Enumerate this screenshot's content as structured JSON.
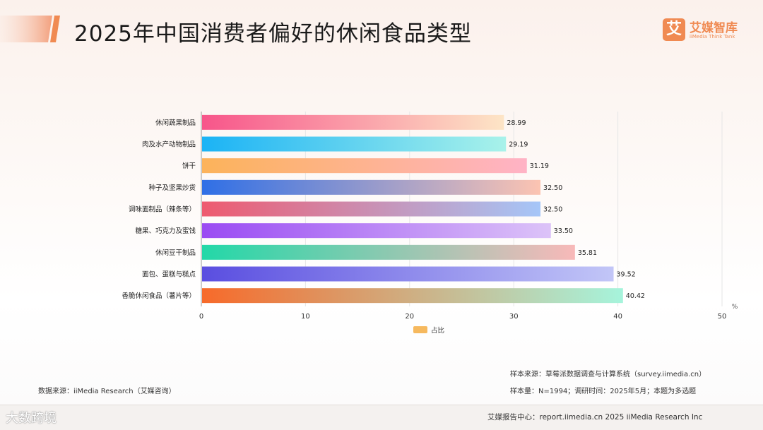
{
  "header": {
    "title": "2025年中国消费者偏好的休闲食品类型",
    "logo_mark": "艾",
    "logo_cn": "艾媒智库",
    "logo_en": "iiMedia Think Tank"
  },
  "chart_data": {
    "type": "bar",
    "orientation": "horizontal",
    "categories": [
      "休闲蔬果制品",
      "肉及水产动物制品",
      "饼干",
      "种子及坚果炒货",
      "调味面制品（辣条等）",
      "糖果、巧克力及蜜饯",
      "休闲豆干制品",
      "面包、蛋糕与糕点",
      "香脆休闲食品（薯片等）"
    ],
    "series": [
      {
        "name": "占比",
        "values": [
          28.99,
          29.19,
          31.19,
          32.5,
          32.5,
          33.5,
          35.81,
          39.52,
          40.42
        ]
      }
    ],
    "value_labels": [
      "28.99",
      "29.19",
      "31.19",
      "32.50",
      "32.50",
      "33.50",
      "35.81",
      "39.52",
      "40.42"
    ],
    "xlim": [
      0,
      50
    ],
    "xticks": [
      0,
      10,
      20,
      30,
      40,
      50
    ],
    "unit": "%",
    "grid": true,
    "legend_position": "bottom",
    "legend_color": "#f6b95e",
    "bar_gradients": [
      [
        "#f7558a",
        "#fde5c6"
      ],
      [
        "#1bb3f5",
        "#a9f2ea"
      ],
      [
        "#fcb35a",
        "#ffb3c6"
      ],
      [
        "#2f6fe6",
        "#fcc4b2"
      ],
      [
        "#ee5a6f",
        "#a5c6f8"
      ],
      [
        "#9a4bf3",
        "#dcc3f8"
      ],
      [
        "#22d8a8",
        "#f8b9b9"
      ],
      [
        "#5a4ee0",
        "#c2c6f7"
      ],
      [
        "#f76a2a",
        "#a6f4dc"
      ]
    ]
  },
  "notes": {
    "source": "数据来源：iiMedia Research（艾媒咨询）",
    "sample_source": "样本来源：草莓派数据调查与计算系统（survey.iimedia.cn）",
    "sample_size": "样本量：N=1994；调研时间：2025年5月；本题为多选题"
  },
  "footer": {
    "watermark": "大数跨境",
    "text": "艾媒报告中心：report.iimedia.cn  2025 iiMedia Research Inc"
  }
}
